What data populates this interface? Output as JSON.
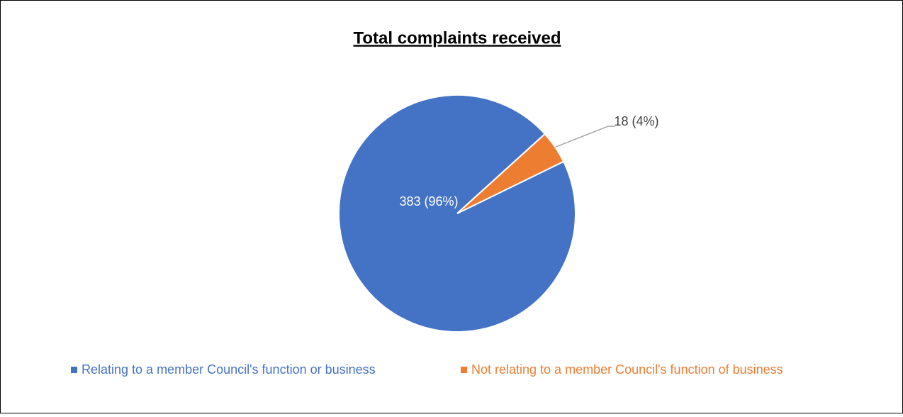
{
  "chart_data": {
    "type": "pie",
    "title": "Total complaints received",
    "categories": [
      "Relating to a member Council's function or business",
      "Not relating to a member Council's function of business"
    ],
    "values": [
      383,
      18
    ],
    "value_labels": [
      "383 (96%)",
      "18 (4%)"
    ],
    "colors": [
      "#4472c4",
      "#ed7d31"
    ]
  }
}
